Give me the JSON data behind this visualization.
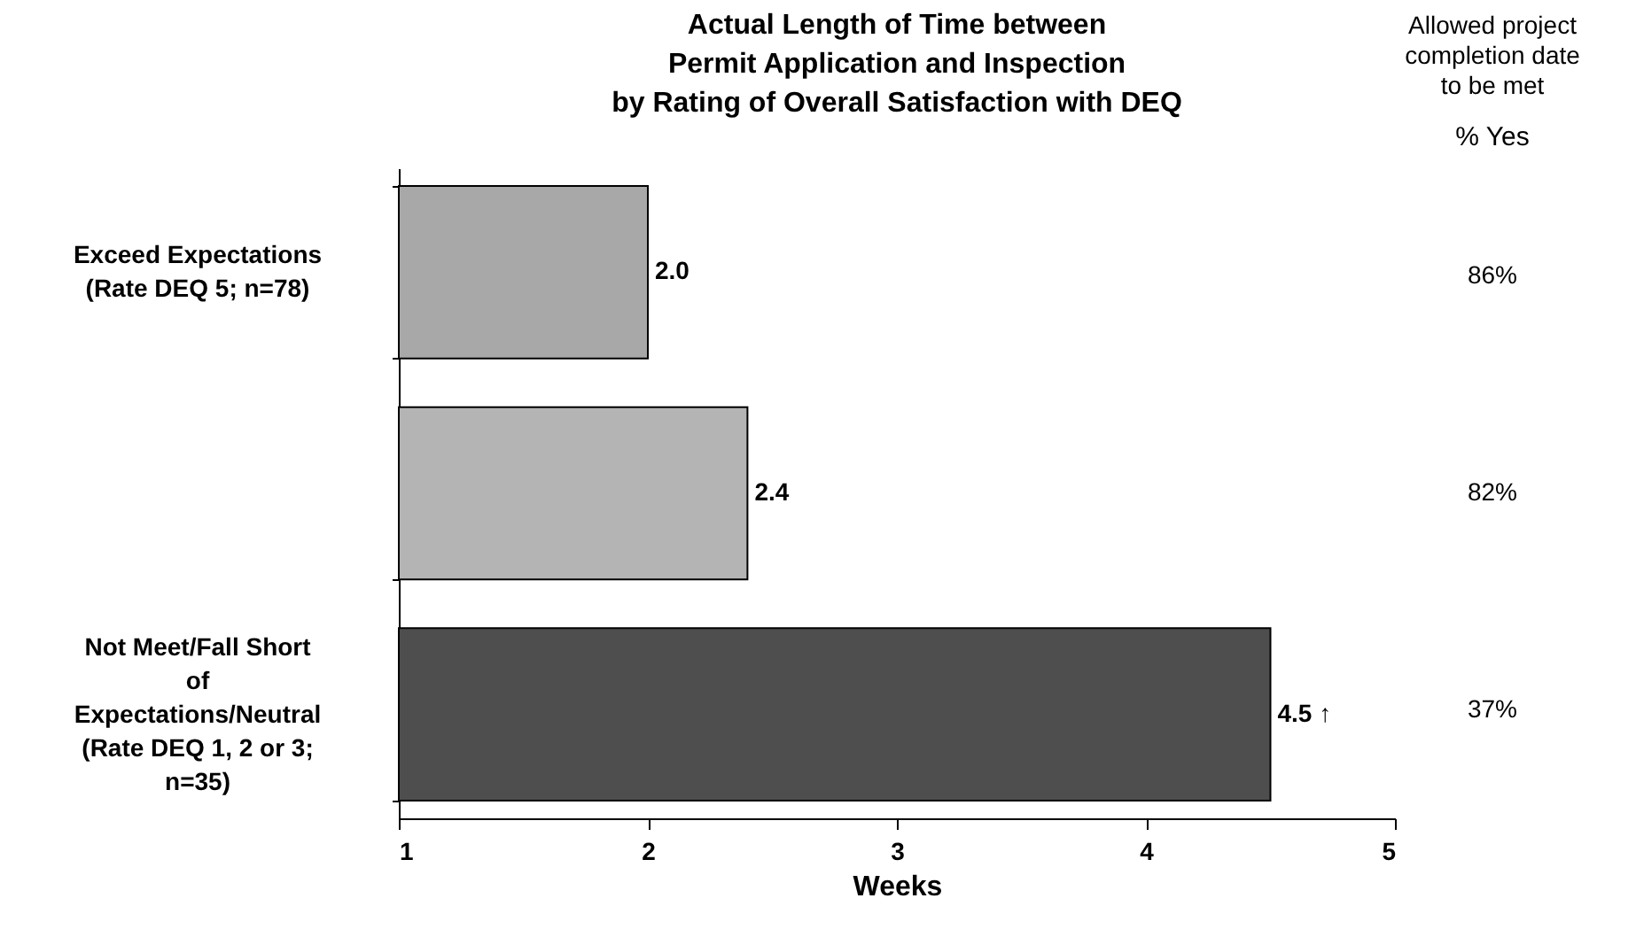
{
  "chart_data": {
    "type": "bar",
    "orientation": "horizontal",
    "title": "Actual  Length of Time between\nPermit Application and Inspection\nby Rating of Overall Satisfaction with DEQ",
    "xlabel": "Weeks",
    "categories": [
      "Exceed Expectations (Rate DEQ 5; n=78)",
      null,
      "Not Meet/Fall Short of Expectations/Neutral (Rate DEQ 1, 2 or 3; n=35)"
    ],
    "values": [
      2.0,
      2.4,
      4.5
    ],
    "colors": [
      "#a8a8a8",
      "#b4b4b4",
      "#4e4e4e"
    ],
    "value_labels": [
      "2.0",
      "2.4",
      "4.5 ↑"
    ],
    "xlim": [
      1,
      5
    ],
    "xticks": [
      1,
      2,
      3,
      4,
      5
    ],
    "grid": false,
    "annotations": [
      "Allowed project\ncompletion date\nto be met",
      "% Yes",
      "86%",
      "82%",
      "37%"
    ]
  }
}
